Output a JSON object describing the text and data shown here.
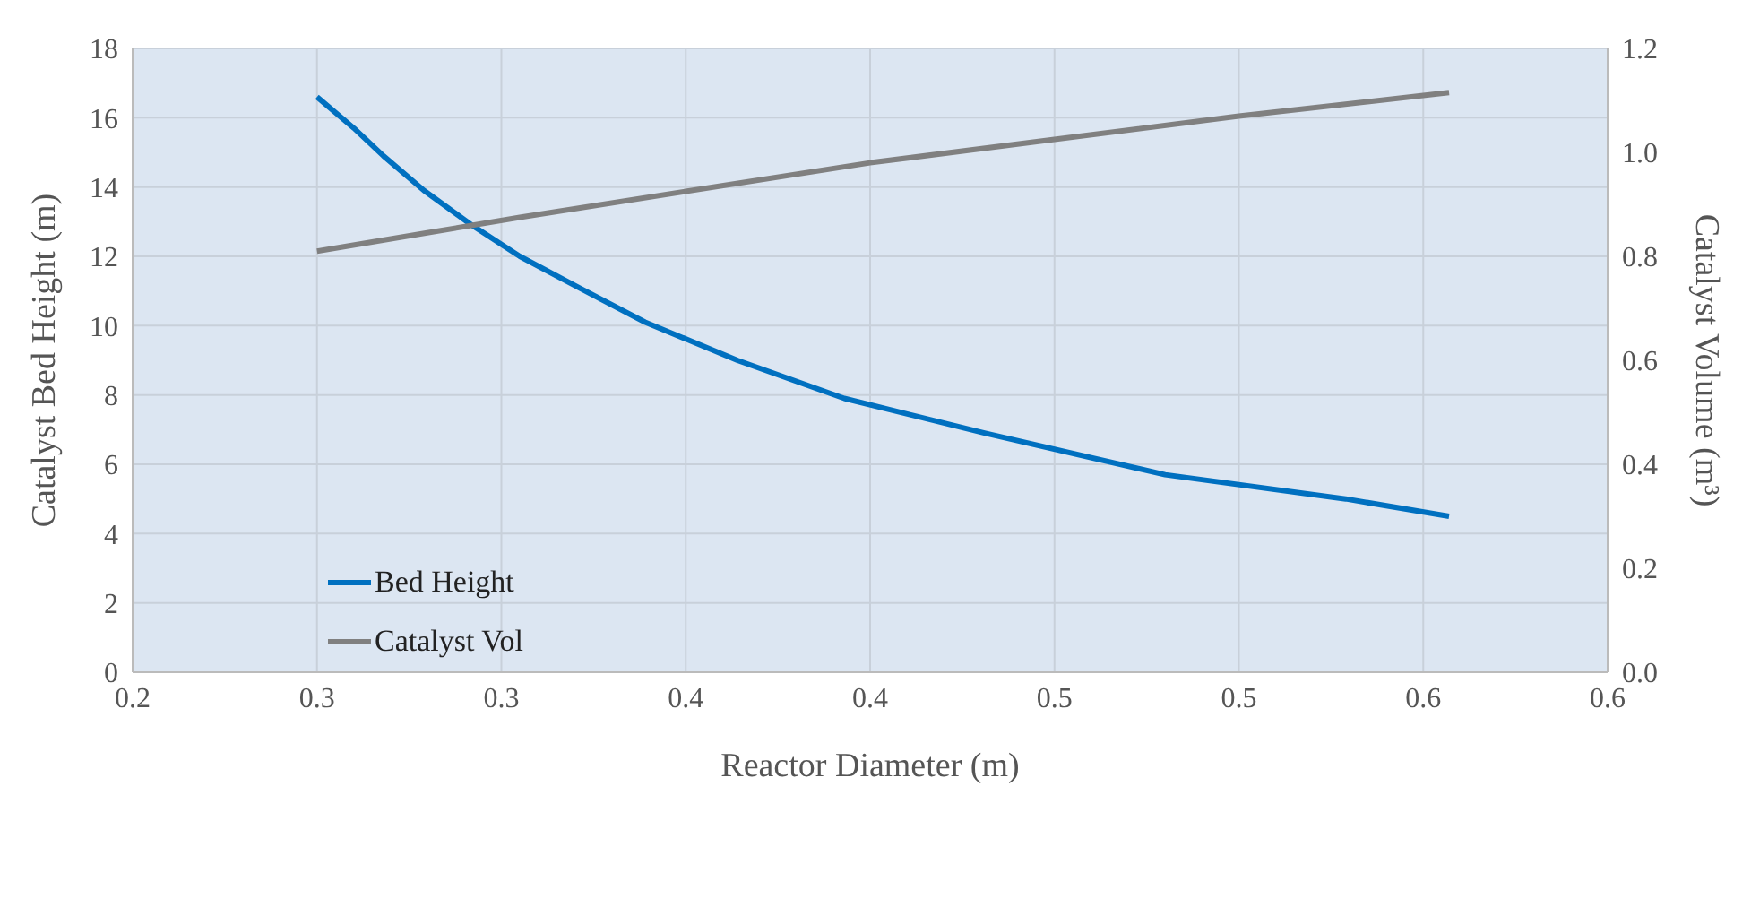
{
  "chart_data": {
    "type": "line",
    "xlabel": "Reactor Diameter (m)",
    "ylabel": "Catalyst Bed Height (m)",
    "y2label": "Catalyst Volume (m³)",
    "xlim": [
      0.2,
      0.6
    ],
    "xticks": [
      {
        "value": 0.2,
        "label": "0.2"
      },
      {
        "value": 0.25,
        "label": "0.3"
      },
      {
        "value": 0.3,
        "label": "0.3"
      },
      {
        "value": 0.35,
        "label": "0.4"
      },
      {
        "value": 0.4,
        "label": "0.4"
      },
      {
        "value": 0.45,
        "label": "0.5"
      },
      {
        "value": 0.5,
        "label": "0.5"
      },
      {
        "value": 0.55,
        "label": "0.6"
      },
      {
        "value": 0.6,
        "label": "0.6"
      }
    ],
    "ylim": [
      0,
      18
    ],
    "yticks": [
      0,
      2,
      4,
      6,
      8,
      10,
      12,
      14,
      16,
      18
    ],
    "y2lim": [
      0,
      1.2
    ],
    "y2ticks": [
      {
        "value": 0,
        "label": "0.0"
      },
      {
        "value": 0.2,
        "label": "0.2"
      },
      {
        "value": 0.4,
        "label": "0.4"
      },
      {
        "value": 0.6,
        "label": "0.6"
      },
      {
        "value": 0.8,
        "label": "0.8"
      },
      {
        "value": 1,
        "label": "1.0"
      },
      {
        "value": 1.2,
        "label": "1.2"
      }
    ],
    "grid": true,
    "legend": "left",
    "marker": "none",
    "line_style": "solid",
    "series": [
      {
        "name": "Bed Height",
        "color": "#0070c0",
        "x": [
          0.25,
          0.26,
          0.268,
          0.279,
          0.292,
          0.305,
          0.321,
          0.339,
          0.364,
          0.393,
          0.431,
          0.48,
          0.529,
          0.557
        ],
        "values": [
          16.6,
          15.7,
          14.9,
          13.9,
          12.9,
          12.0,
          11.1,
          10.1,
          9.0,
          7.9,
          6.9,
          5.7,
          5.0,
          4.5
        ]
      },
      {
        "name": "Catalyst Vol",
        "color": "#808080",
        "axis": "y2",
        "x": [
          0.25,
          0.305,
          0.35,
          0.4,
          0.45,
          0.5,
          0.557
        ],
        "values": [
          0.81,
          0.875,
          0.925,
          0.98,
          1.025,
          1.07,
          1.115
        ]
      }
    ]
  }
}
